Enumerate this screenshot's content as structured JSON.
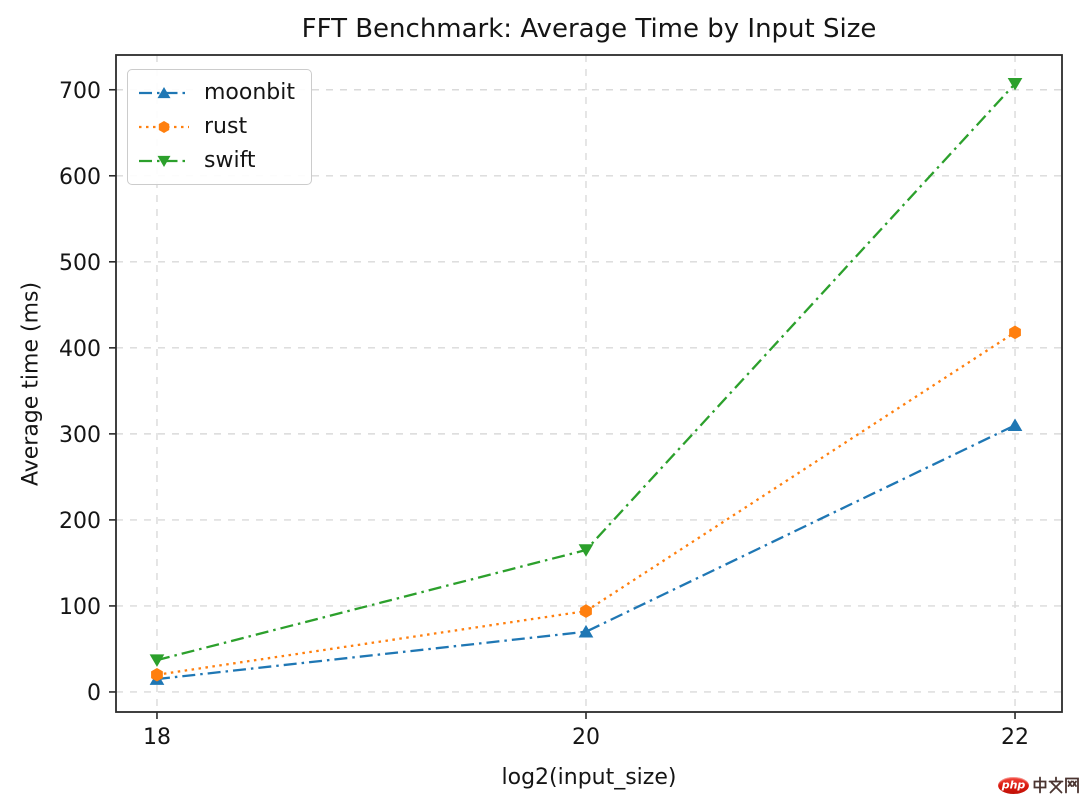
{
  "chart_data": {
    "type": "line",
    "title": "FFT Benchmark: Average Time by Input Size",
    "xlabel": "log2(input_size)",
    "ylabel": "Average time (ms)",
    "x": [
      18,
      20,
      22
    ],
    "x_tick_labels": [
      "18",
      "20",
      "22"
    ],
    "y_ticks": [
      0,
      100,
      200,
      300,
      400,
      500,
      600,
      700
    ],
    "xlim": [
      17.809,
      22.219
    ],
    "ylim": [
      -23.3,
      740.4
    ],
    "grid": true,
    "grid_color": "#dadada",
    "spine_color": "#2b2b2b",
    "text_color": "#151515",
    "legend_position": "upper left",
    "series": [
      {
        "name": "moonbit",
        "color": "#1f77b4",
        "linestyle": "dashdot",
        "marker": "triangle-up",
        "values": [
          15,
          70,
          310
        ]
      },
      {
        "name": "rust",
        "color": "#ff7f0e",
        "linestyle": "dotted",
        "marker": "hexagon",
        "values": [
          20,
          94,
          418
        ]
      },
      {
        "name": "swift",
        "color": "#2ca02c",
        "linestyle": "dashdot",
        "marker": "triangle-down",
        "values": [
          37,
          165,
          707
        ]
      }
    ]
  },
  "watermark": {
    "badge_text": "php",
    "site_text": "中文网",
    "badge_color": "#d9190e",
    "glyph_color": "#4a3430"
  }
}
